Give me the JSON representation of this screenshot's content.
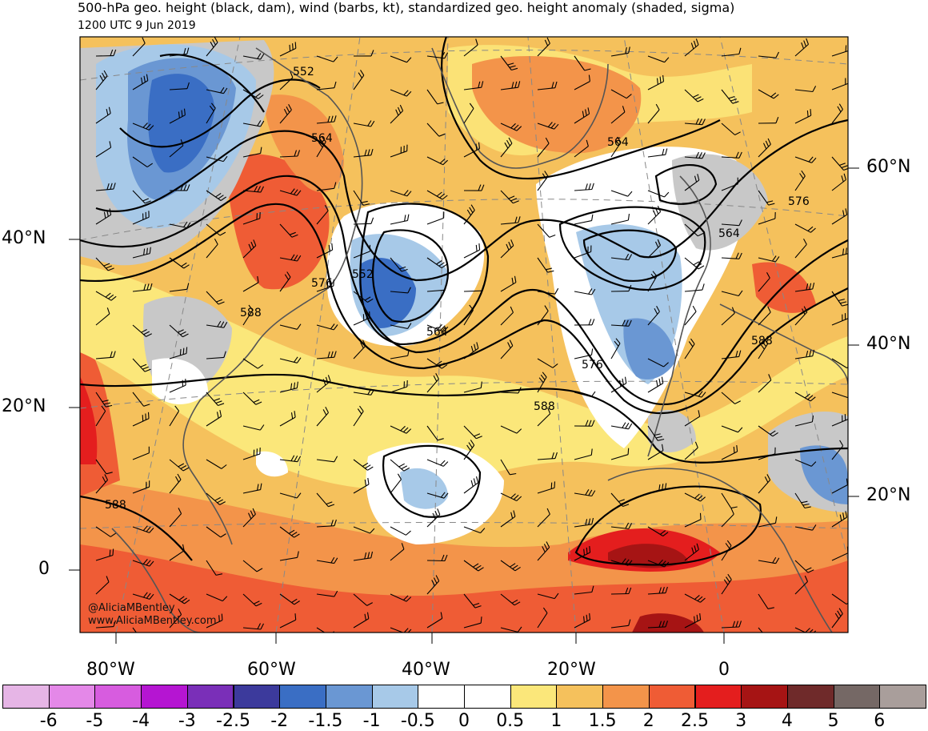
{
  "title": "500-hPa geo. height (black, dam), wind (barbs, kt), standardized geo. height anomaly (shaded, sigma)",
  "valid_time": "1200 UTC 9 Jun 2019",
  "lat_labels_left": [
    "40°N",
    "20°N",
    "0"
  ],
  "lat_labels_right": [
    "60°N",
    "40°N",
    "20°N"
  ],
  "lon_labels": [
    "80°W",
    "60°W",
    "40°W",
    "20°W",
    "0"
  ],
  "contour_labels": [
    "552",
    "564",
    "564",
    "552",
    "576",
    "588",
    "564",
    "576",
    "564",
    "576",
    "588",
    "588",
    "588"
  ],
  "colorbar": {
    "labels": [
      "-6",
      "-5",
      "-4",
      "-3",
      "-2.5",
      "-2",
      "-1.5",
      "-1",
      "-0.5",
      "0",
      "0.5",
      "1",
      "1.5",
      "2",
      "2.5",
      "3",
      "4",
      "5",
      "6"
    ],
    "colors": [
      "#e6b5e6",
      "#e488e8",
      "#d75cdf",
      "#b515d2",
      "#7a2fb8",
      "#3c3a9c",
      "#3a6ec4",
      "#6a97d3",
      "#a7c9e8",
      "#ffffff",
      "#ffffff",
      "#fbe77a",
      "#f5c15c",
      "#f3944a",
      "#ef5c35",
      "#e41e1e",
      "#a61414",
      "#6f2a2a",
      "#756865",
      "#a99e9b"
    ]
  },
  "credit": {
    "handle": "@AliciaMBentley",
    "url": "www.AliciaMBentley.com"
  }
}
